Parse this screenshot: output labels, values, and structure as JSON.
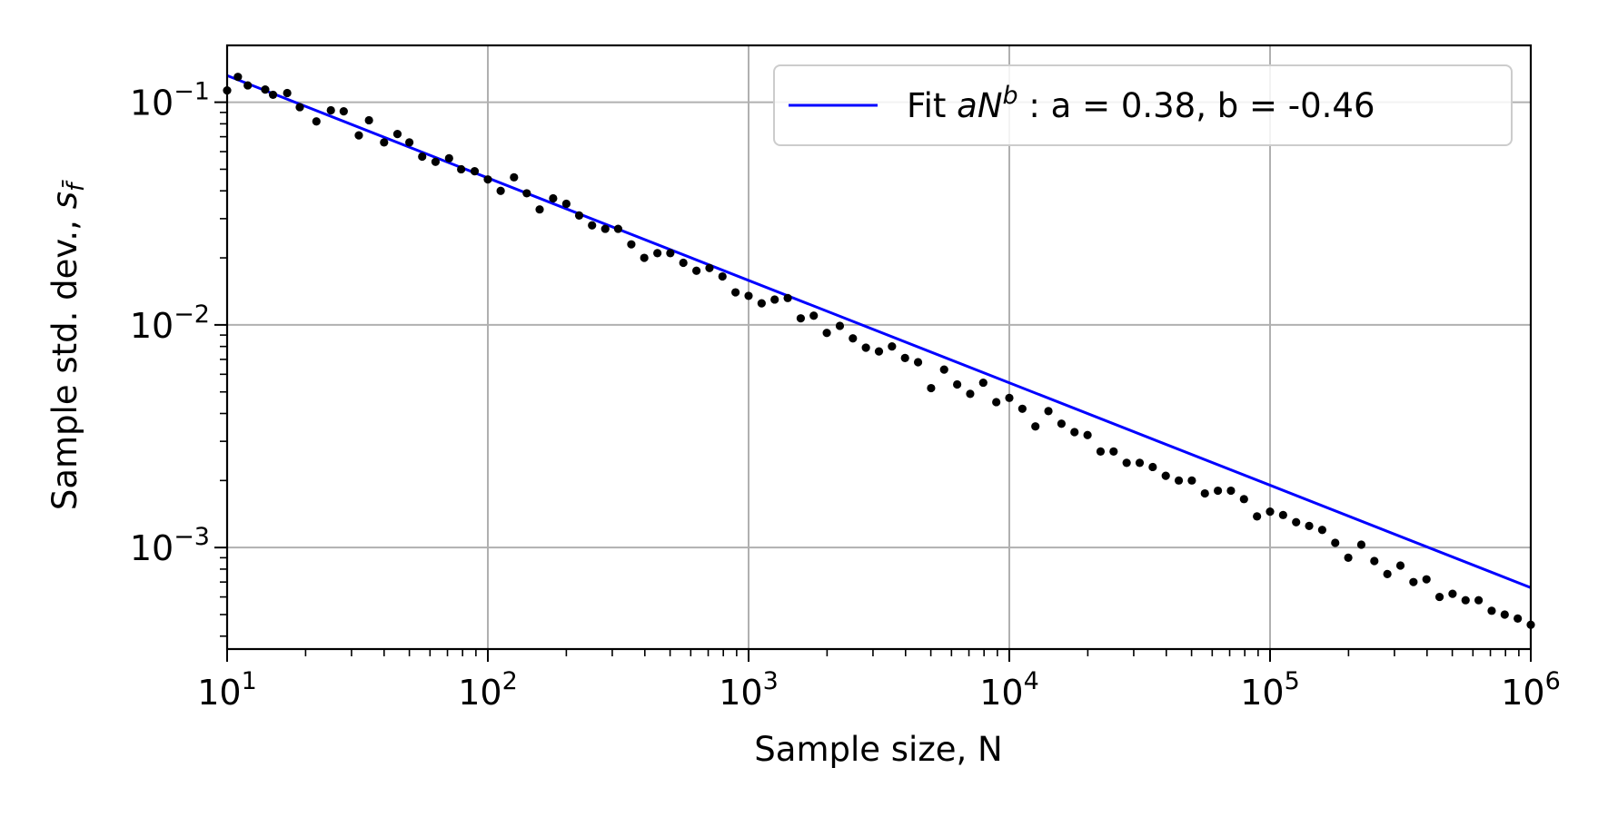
{
  "chart_data": {
    "type": "scatter",
    "xlabel": "Sample size, N",
    "ylabel": "Sample std. dev., ",
    "ylabel_symbol": "s",
    "ylabel_subscript": "f̄",
    "xscale": "log",
    "yscale": "log",
    "xlim": [
      10,
      1000000
    ],
    "ylim": [
      0.00035,
      0.18
    ],
    "grid": true,
    "legend_position": "top-right",
    "x_ticks": [
      {
        "base": "10",
        "exp": "1"
      },
      {
        "base": "10",
        "exp": "2"
      },
      {
        "base": "10",
        "exp": "3"
      },
      {
        "base": "10",
        "exp": "4"
      },
      {
        "base": "10",
        "exp": "5"
      },
      {
        "base": "10",
        "exp": "6"
      }
    ],
    "x_tick_values": [
      10,
      100,
      1000,
      10000,
      100000,
      1000000
    ],
    "y_ticks": [
      {
        "base": "10",
        "exp": "−3"
      },
      {
        "base": "10",
        "exp": "−2"
      },
      {
        "base": "10",
        "exp": "−1"
      }
    ],
    "y_tick_values": [
      0.001,
      0.01,
      0.1
    ],
    "fit": {
      "legend_prefix": "Fit ",
      "legend_a": "a",
      "legend_N": "N",
      "legend_b": "b",
      "legend_suffix": " : a = 0.38, b = -0.46",
      "a": 0.38,
      "b": -0.46,
      "color": "#0000ff"
    },
    "points_color": "#000000",
    "series": [
      {
        "type": "scatter",
        "x": [
          10,
          11,
          12,
          14,
          15,
          17,
          19,
          22,
          25,
          28,
          32,
          35,
          40,
          45,
          50,
          56,
          63,
          71,
          79,
          89,
          100,
          112,
          126,
          141,
          158,
          178,
          200,
          224,
          251,
          282,
          316,
          355,
          398,
          447,
          501,
          562,
          631,
          708,
          794,
          891,
          1000,
          1122,
          1259,
          1413,
          1585,
          1778,
          1995,
          2239,
          2512,
          2818,
          3162,
          3548,
          3981,
          4467,
          5012,
          5623,
          6310,
          7079,
          7943,
          8913,
          10000,
          11220,
          12589,
          14125,
          15849,
          17783,
          19953,
          22387,
          25119,
          28184,
          31623,
          35481,
          39811,
          44668,
          50119,
          56234,
          63096,
          70795,
          79433,
          89125,
          100000,
          112202,
          125893,
          141254,
          158489,
          177828,
          199526,
          223872,
          251189,
          281838,
          316228,
          354813,
          398107,
          446684,
          501187,
          562341,
          630957,
          707946,
          794328,
          891251,
          1000000
        ],
        "y": [
          0.113,
          0.13,
          0.119,
          0.114,
          0.108,
          0.11,
          0.095,
          0.082,
          0.092,
          0.091,
          0.071,
          0.083,
          0.066,
          0.072,
          0.066,
          0.057,
          0.054,
          0.056,
          0.05,
          0.049,
          0.045,
          0.04,
          0.046,
          0.039,
          0.033,
          0.037,
          0.035,
          0.031,
          0.028,
          0.027,
          0.027,
          0.023,
          0.02,
          0.021,
          0.021,
          0.019,
          0.0175,
          0.018,
          0.0165,
          0.014,
          0.0135,
          0.0125,
          0.013,
          0.0132,
          0.0107,
          0.011,
          0.0092,
          0.0099,
          0.0087,
          0.0079,
          0.0076,
          0.008,
          0.0071,
          0.0068,
          0.0052,
          0.0063,
          0.0054,
          0.0049,
          0.0055,
          0.0045,
          0.0047,
          0.0042,
          0.0035,
          0.0041,
          0.0036,
          0.0033,
          0.0032,
          0.0027,
          0.0027,
          0.0024,
          0.0024,
          0.0023,
          0.0021,
          0.002,
          0.002,
          0.00175,
          0.0018,
          0.0018,
          0.00165,
          0.00138,
          0.00145,
          0.0014,
          0.0013,
          0.00125,
          0.0012,
          0.00105,
          0.0009,
          0.00103,
          0.00087,
          0.00076,
          0.00083,
          0.0007,
          0.00072,
          0.0006,
          0.00062,
          0.00058,
          0.00058,
          0.00052,
          0.0005,
          0.00048,
          0.00045
        ]
      }
    ]
  }
}
